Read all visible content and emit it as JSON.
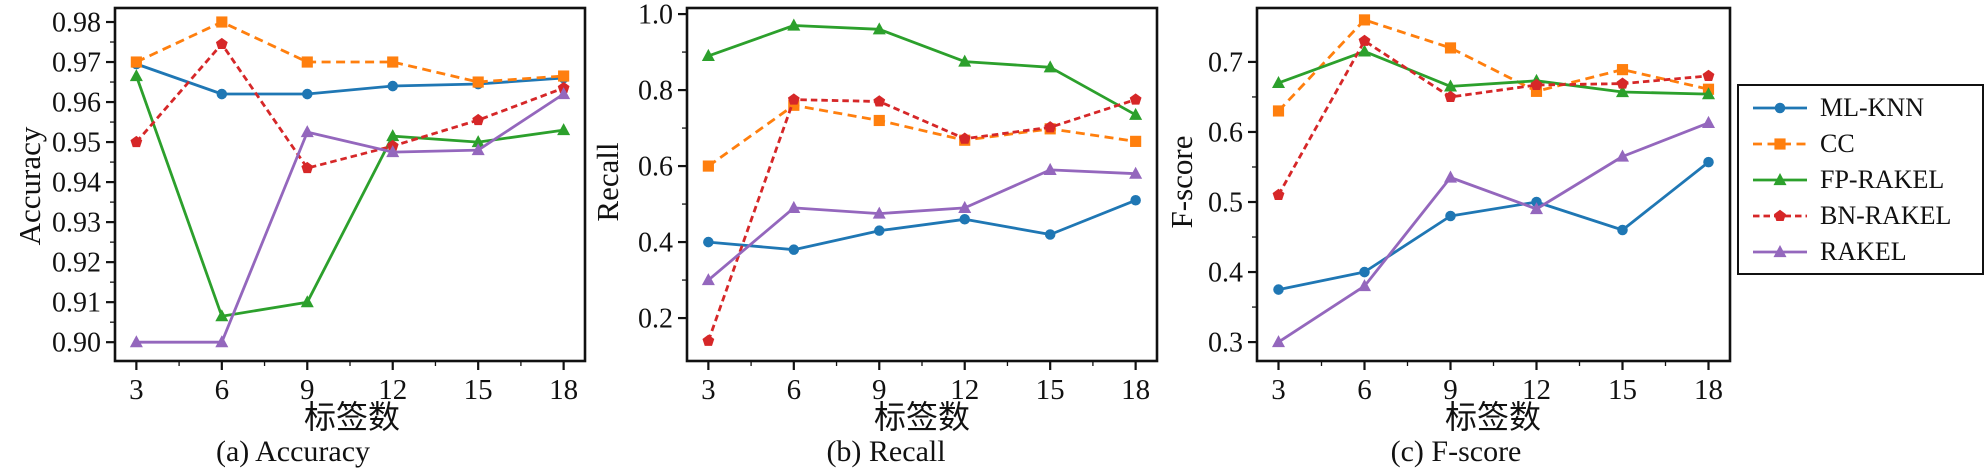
{
  "figure": {
    "background": "#ffffff",
    "axis_color": "#111111",
    "xlabel_shared": "标签数"
  },
  "legend": {
    "position": "outside-right",
    "items": [
      {
        "label": "ML-KNN",
        "color": "#1f77b4",
        "marker": "circle",
        "line": "solid"
      },
      {
        "label": "CC",
        "color": "#ff7f0e",
        "marker": "square",
        "line": "dashed"
      },
      {
        "label": "FP-RAKEL",
        "color": "#2ca02c",
        "marker": "triangle",
        "line": "solid"
      },
      {
        "label": "BN-RAKEL",
        "color": "#d62728",
        "marker": "pentagon",
        "line": "dashed"
      },
      {
        "label": "RAKEL",
        "color": "#9467bd",
        "marker": "triangle",
        "line": "solid"
      }
    ]
  },
  "chart_data": [
    {
      "type": "line",
      "title": "(a) Accuracy",
      "xlabel": "标签数",
      "ylabel": "Accuracy",
      "x": [
        3,
        6,
        9,
        12,
        15,
        18
      ],
      "xtick_labels": [
        "3",
        "6",
        "9",
        "12",
        "15",
        "18"
      ],
      "yticks": [
        0.9,
        0.91,
        0.92,
        0.93,
        0.94,
        0.95,
        0.96,
        0.97,
        0.98
      ],
      "ytick_labels": [
        "0.90",
        "0.91",
        "0.92",
        "0.93",
        "0.94",
        "0.95",
        "0.96",
        "0.97",
        "0.98"
      ],
      "xlim": [
        2.25,
        18.75
      ],
      "ylim": [
        0.8953,
        0.9835
      ],
      "grid": false,
      "series": [
        {
          "name": "ML-KNN",
          "values": [
            0.9695,
            0.962,
            0.962,
            0.964,
            0.9645,
            0.966
          ]
        },
        {
          "name": "CC",
          "values": [
            0.97,
            0.98,
            0.97,
            0.97,
            0.965,
            0.9665
          ]
        },
        {
          "name": "FP-RAKEL",
          "values": [
            0.9665,
            0.9065,
            0.91,
            0.9515,
            0.95,
            0.953
          ]
        },
        {
          "name": "BN-RAKEL",
          "values": [
            0.95,
            0.9745,
            0.9435,
            0.949,
            0.9555,
            0.9635
          ]
        },
        {
          "name": "RAKEL",
          "values": [
            0.9,
            0.9,
            0.9525,
            0.9475,
            0.948,
            0.962
          ]
        }
      ]
    },
    {
      "type": "line",
      "title": "(b) Recall",
      "xlabel": "标签数",
      "ylabel": "Recall",
      "x": [
        3,
        6,
        9,
        12,
        15,
        18
      ],
      "xtick_labels": [
        "3",
        "6",
        "9",
        "12",
        "15",
        "18"
      ],
      "yticks": [
        0.2,
        0.4,
        0.6,
        0.8,
        1.0
      ],
      "ytick_labels": [
        "0.2",
        "0.4",
        "0.6",
        "0.8",
        "1.0"
      ],
      "xlim": [
        2.25,
        18.75
      ],
      "ylim": [
        0.087,
        1.016
      ],
      "grid": false,
      "series": [
        {
          "name": "ML-KNN",
          "values": [
            0.4,
            0.38,
            0.43,
            0.46,
            0.42,
            0.51
          ]
        },
        {
          "name": "CC",
          "values": [
            0.6,
            0.76,
            0.72,
            0.668,
            0.698,
            0.665
          ]
        },
        {
          "name": "FP-RAKEL",
          "values": [
            0.89,
            0.97,
            0.96,
            0.875,
            0.86,
            0.735
          ]
        },
        {
          "name": "BN-RAKEL",
          "values": [
            0.14,
            0.775,
            0.77,
            0.672,
            0.702,
            0.775
          ]
        },
        {
          "name": "RAKEL",
          "values": [
            0.3,
            0.49,
            0.475,
            0.49,
            0.59,
            0.58
          ]
        }
      ]
    },
    {
      "type": "line",
      "title": "(c) F-score",
      "xlabel": "标签数",
      "ylabel": "F-score",
      "x": [
        3,
        6,
        9,
        12,
        15,
        18
      ],
      "xtick_labels": [
        "3",
        "6",
        "9",
        "12",
        "15",
        "18"
      ],
      "yticks": [
        0.3,
        0.4,
        0.5,
        0.6,
        0.7
      ],
      "ytick_labels": [
        "0.3",
        "0.4",
        "0.5",
        "0.6",
        "0.7"
      ],
      "xlim": [
        2.25,
        18.75
      ],
      "ylim": [
        0.273,
        0.777
      ],
      "grid": false,
      "series": [
        {
          "name": "ML-KNN",
          "values": [
            0.375,
            0.4,
            0.48,
            0.5,
            0.46,
            0.557
          ]
        },
        {
          "name": "CC",
          "values": [
            0.63,
            0.76,
            0.72,
            0.658,
            0.689,
            0.661
          ]
        },
        {
          "name": "FP-RAKEL",
          "values": [
            0.67,
            0.715,
            0.665,
            0.673,
            0.657,
            0.654
          ]
        },
        {
          "name": "BN-RAKEL",
          "values": [
            0.51,
            0.73,
            0.65,
            0.667,
            0.669,
            0.68
          ]
        },
        {
          "name": "RAKEL",
          "values": [
            0.3,
            0.38,
            0.535,
            0.49,
            0.565,
            0.613
          ]
        }
      ]
    }
  ]
}
